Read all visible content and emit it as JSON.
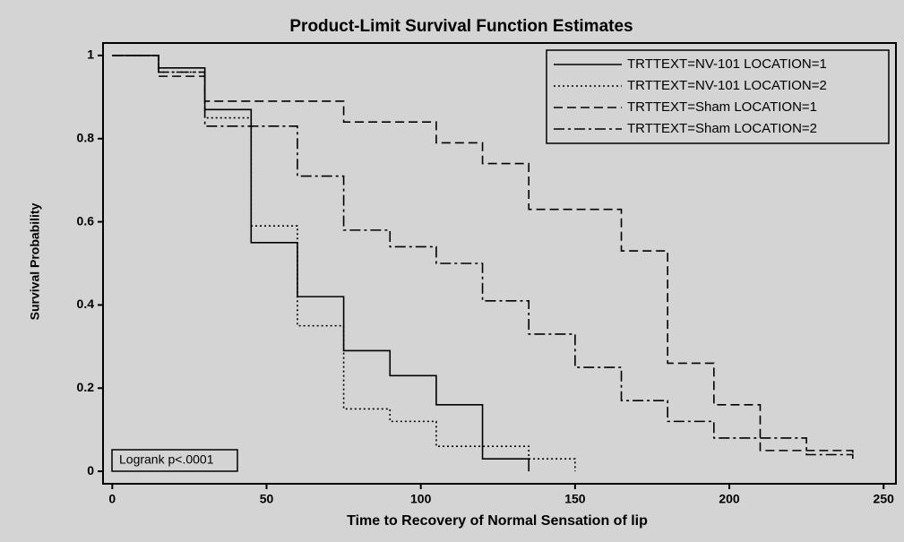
{
  "chart_data": {
    "type": "step",
    "title": "Product-Limit Survival Function Estimates",
    "x_label": "Time to Recovery of Normal Sensation of lip",
    "y_label": "Survival Probability",
    "annotation": "Logrank p<.0001",
    "legend": "top-right",
    "xlim": [
      -3,
      254
    ],
    "ylim": [
      -0.03,
      1.03
    ],
    "xticks": [
      0,
      50,
      100,
      150,
      200,
      250
    ],
    "yticks": [
      0,
      0.2,
      0.4,
      0.6,
      0.8,
      1
    ],
    "series": [
      {
        "name": "TRTTEXT=NV-101 LOCATION=1",
        "color": "#000000",
        "line_style": "solid",
        "x": [
          0,
          15,
          30,
          45,
          60,
          75,
          90,
          105,
          120,
          135
        ],
        "values": [
          1,
          0.97,
          0.87,
          0.55,
          0.42,
          0.29,
          0.23,
          0.16,
          0.03,
          0
        ]
      },
      {
        "name": "TRTTEXT=NV-101 LOCATION=2",
        "color": "#000000",
        "line_style": "dotted",
        "x": [
          0,
          15,
          30,
          45,
          60,
          75,
          90,
          105,
          135,
          150
        ],
        "values": [
          1,
          0.96,
          0.85,
          0.59,
          0.35,
          0.15,
          0.12,
          0.06,
          0.03,
          0
        ]
      },
      {
        "name": "TRTTEXT=Sham LOCATION=1",
        "color": "#000000",
        "line_style": "dashed",
        "x": [
          0,
          15,
          30,
          75,
          105,
          120,
          135,
          165,
          180,
          195,
          210,
          225,
          240
        ],
        "values": [
          1,
          0.95,
          0.89,
          0.84,
          0.79,
          0.74,
          0.63,
          0.53,
          0.26,
          0.16,
          0.05,
          0.05,
          0.04
        ]
      },
      {
        "name": "TRTTEXT=Sham LOCATION=2",
        "color": "#000000",
        "line_style": "dashdot",
        "x": [
          0,
          15,
          30,
          60,
          75,
          90,
          105,
          120,
          135,
          150,
          165,
          180,
          195,
          225,
          240
        ],
        "values": [
          1,
          0.96,
          0.83,
          0.71,
          0.58,
          0.54,
          0.5,
          0.41,
          0.33,
          0.25,
          0.17,
          0.12,
          0.08,
          0.04,
          0.03
        ]
      }
    ]
  }
}
